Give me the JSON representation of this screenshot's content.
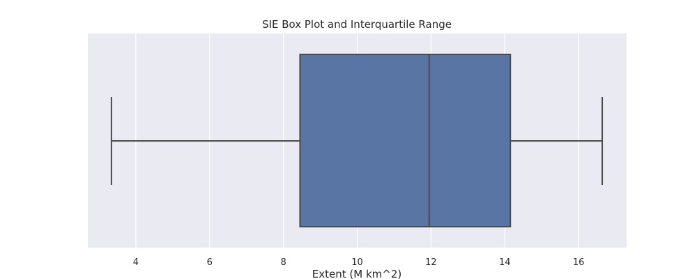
{
  "chart_data": {
    "type": "box",
    "title": "SIE Box Plot and Interquartile Range",
    "xlabel": "Extent (M km^2)",
    "ylabel": "",
    "xlim": [
      2.7,
      17.3
    ],
    "x_ticks": [
      4,
      6,
      8,
      10,
      12,
      14,
      16
    ],
    "x_tick_labels": [
      "4",
      "6",
      "8",
      "10",
      "12",
      "14",
      "16"
    ],
    "grid": true,
    "box": {
      "whisker_low": 3.34,
      "q1": 8.45,
      "median": 11.95,
      "q3": 14.15,
      "whisker_high": 16.64
    },
    "colors": {
      "plot_background": "#eaeaf2",
      "grid": "#ffffff",
      "box_fill": "#5875a4",
      "box_edge": "#4a4a4a"
    }
  }
}
